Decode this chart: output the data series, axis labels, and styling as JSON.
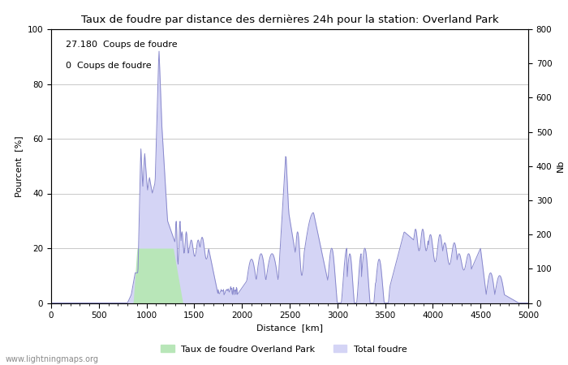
{
  "title": "Taux de foudre par distance des dernières 24h pour la station: Overland Park",
  "xlabel": "Distance  [km]",
  "ylabel_left": "Pourcent  [%]",
  "ylabel_right": "Nb",
  "annotation_line1": "27.180  Coups de foudre",
  "annotation_line2": "0  Coups de foudre",
  "watermark": "www.lightningmaps.org",
  "xlim": [
    0,
    5000
  ],
  "ylim_left": [
    0,
    100
  ],
  "ylim_right": [
    0,
    800
  ],
  "xticks": [
    0,
    500,
    1000,
    1500,
    2000,
    2500,
    3000,
    3500,
    4000,
    4500,
    5000
  ],
  "yticks_left": [
    0,
    20,
    40,
    60,
    80,
    100
  ],
  "yticks_right": [
    0,
    100,
    200,
    300,
    400,
    500,
    600,
    700,
    800
  ],
  "legend_label1": "Taux de foudre Overland Park",
  "legend_label2": "Total foudre",
  "fill_color_green": "#b8e6b8",
  "fill_color_blue": "#d4d4f5",
  "line_color": "#8888cc",
  "background_color": "#ffffff",
  "grid_color": "#c8c8c8"
}
